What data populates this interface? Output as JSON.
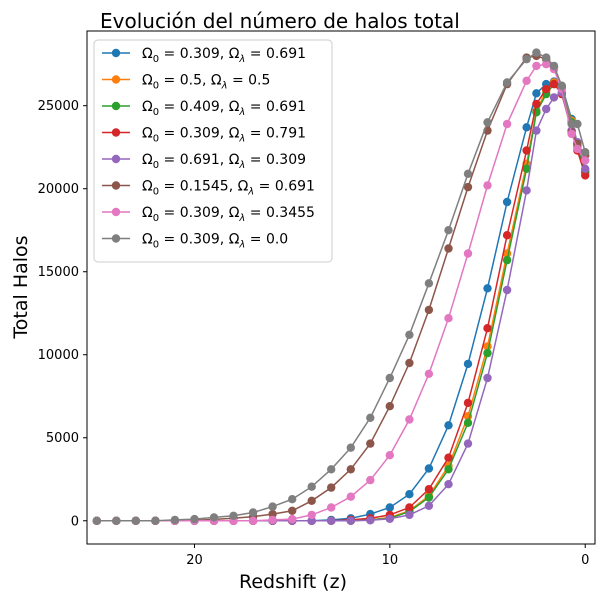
{
  "chart_data": {
    "type": "line",
    "title": "Evolución del número de halos total",
    "xlabel": "Redshift (z)",
    "ylabel": "Total Halos",
    "xlim": [
      25.5,
      -0.5
    ],
    "ylim": [
      -1400,
      29500
    ],
    "x_ticks": [
      20,
      10,
      0
    ],
    "y_ticks": [
      0,
      5000,
      10000,
      15000,
      20000,
      25000
    ],
    "grid": false,
    "legend_position": "top-left",
    "x": [
      25,
      24,
      23,
      22,
      21,
      20,
      19,
      18,
      17,
      16,
      15,
      14,
      13,
      12,
      11,
      10,
      9,
      8,
      7,
      6,
      5,
      4,
      3,
      2.5,
      2,
      1.6,
      1.2,
      0.7,
      0.4,
      0
    ],
    "series": [
      {
        "name": "Ω0 = 0.309, Ωλ = 0.691",
        "color": "#1f77b4",
        "values": [
          0,
          0,
          0,
          0,
          0,
          0,
          0,
          0,
          0,
          0,
          0,
          0,
          50,
          150,
          400,
          800,
          1600,
          3150,
          5750,
          9450,
          14000,
          19200,
          23700,
          25750,
          26300,
          26450,
          26200,
          24200,
          22700,
          21000
        ]
      },
      {
        "name": "Ω0 = 0.5, Ωλ = 0.5",
        "color": "#ff7f0e",
        "values": [
          0,
          0,
          0,
          0,
          0,
          0,
          0,
          0,
          0,
          0,
          0,
          0,
          0,
          0,
          50,
          200,
          600,
          1500,
          3300,
          6300,
          10500,
          16100,
          21500,
          24700,
          25900,
          26400,
          26100,
          24100,
          22600,
          21100
        ]
      },
      {
        "name": "Ω0 = 0.409, Ωλ = 0.691",
        "color": "#2ca02c",
        "values": [
          0,
          0,
          0,
          0,
          0,
          0,
          0,
          0,
          0,
          0,
          0,
          0,
          0,
          0,
          50,
          150,
          550,
          1400,
          3100,
          5900,
          10100,
          15700,
          21200,
          24600,
          25700,
          26300,
          26050,
          24000,
          22500,
          21000
        ]
      },
      {
        "name": "Ω0 = 0.309, Ωλ = 0.791",
        "color": "#d62728",
        "values": [
          0,
          0,
          0,
          0,
          0,
          0,
          0,
          0,
          0,
          0,
          0,
          0,
          0,
          50,
          150,
          350,
          800,
          1900,
          3800,
          7100,
          11600,
          17200,
          22300,
          25100,
          26000,
          26300,
          25700,
          23500,
          22300,
          20800
        ]
      },
      {
        "name": "Ω0 = 0.691, Ωλ = 0.309",
        "color": "#9467bd",
        "values": [
          0,
          0,
          0,
          0,
          0,
          0,
          0,
          0,
          0,
          0,
          0,
          0,
          0,
          0,
          30,
          120,
          350,
          900,
          2200,
          4650,
          8600,
          13900,
          19900,
          23500,
          24800,
          25500,
          25800,
          23500,
          22800,
          21200
        ]
      },
      {
        "name": "Ω0 = 0.1545, Ωλ = 0.691",
        "color": "#8c564b",
        "values": [
          0,
          0,
          0,
          0,
          0,
          20,
          80,
          150,
          250,
          400,
          600,
          1200,
          2000,
          3100,
          4650,
          6900,
          9500,
          12700,
          16400,
          20100,
          23500,
          26300,
          27900,
          28000,
          27800,
          27300,
          26100,
          23400,
          22700,
          22000
        ]
      },
      {
        "name": "Ω0 = 0.309, Ωλ = 0.3455",
        "color": "#e377c2",
        "values": [
          0,
          0,
          0,
          0,
          0,
          0,
          0,
          0,
          0,
          50,
          100,
          350,
          800,
          1450,
          2450,
          3950,
          6100,
          8850,
          12200,
          16100,
          20200,
          23900,
          26500,
          27400,
          27500,
          27200,
          26000,
          23300,
          22400,
          21700
        ]
      },
      {
        "name": "Ω0 = 0.309, Ωλ = 0.0",
        "color": "#7f7f7f",
        "values": [
          0,
          0,
          0,
          0,
          50,
          100,
          200,
          300,
          500,
          850,
          1300,
          2050,
          3100,
          4400,
          6200,
          8600,
          11200,
          14300,
          17500,
          20900,
          24000,
          26400,
          27800,
          28200,
          27900,
          27400,
          26200,
          23900,
          23900,
          22200
        ]
      }
    ],
    "legend_labels": [
      {
        "o": "0.309",
        "l": "0.691"
      },
      {
        "o": "0.5",
        "l": "0.5"
      },
      {
        "o": "0.409",
        "l": "0.691"
      },
      {
        "o": "0.309",
        "l": "0.791"
      },
      {
        "o": "0.691",
        "l": "0.309"
      },
      {
        "o": "0.1545",
        "l": "0.691"
      },
      {
        "o": "0.309",
        "l": "0.3455"
      },
      {
        "o": "0.309",
        "l": "0.0"
      }
    ]
  }
}
